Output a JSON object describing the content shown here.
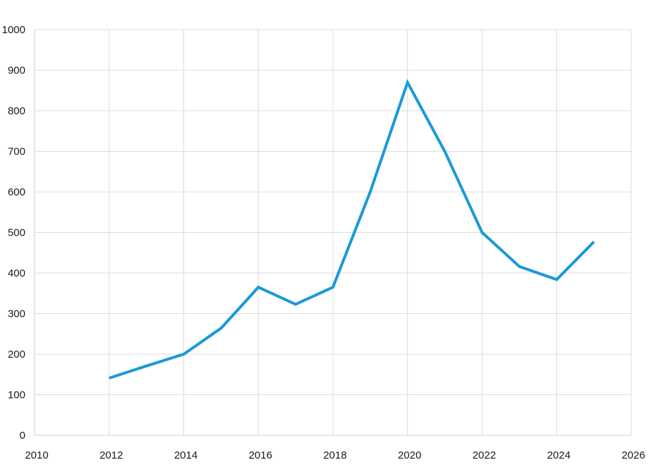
{
  "chart_data": {
    "type": "line",
    "title": "",
    "xlabel": "",
    "ylabel": "",
    "xlim": [
      2010,
      2026
    ],
    "ylim": [
      0,
      1000
    ],
    "x_ticks": [
      2010,
      2012,
      2014,
      2016,
      2018,
      2020,
      2022,
      2024,
      2026
    ],
    "y_ticks": [
      0,
      100,
      200,
      300,
      400,
      500,
      600,
      700,
      800,
      900,
      1000
    ],
    "x_tick_labels": [
      "2010",
      "2012",
      "2014",
      "2016",
      "2018",
      "2020",
      "2022",
      "2024",
      "2026"
    ],
    "y_tick_labels": [
      "0",
      "100",
      "200",
      "300",
      "400",
      "500",
      "600",
      "700",
      "800",
      "900",
      "1000"
    ],
    "grid": true,
    "legend": "none",
    "series": [
      {
        "color": "#1a9ad6",
        "x": [
          2012,
          2013,
          2014,
          2015,
          2016,
          2017,
          2018,
          2019,
          2020,
          2021,
          2022,
          2023,
          2024,
          2025
        ],
        "y": [
          141,
          171,
          200,
          264,
          365,
          323,
          365,
          600,
          870,
          700,
          500,
          416,
          384,
          477
        ]
      }
    ]
  }
}
